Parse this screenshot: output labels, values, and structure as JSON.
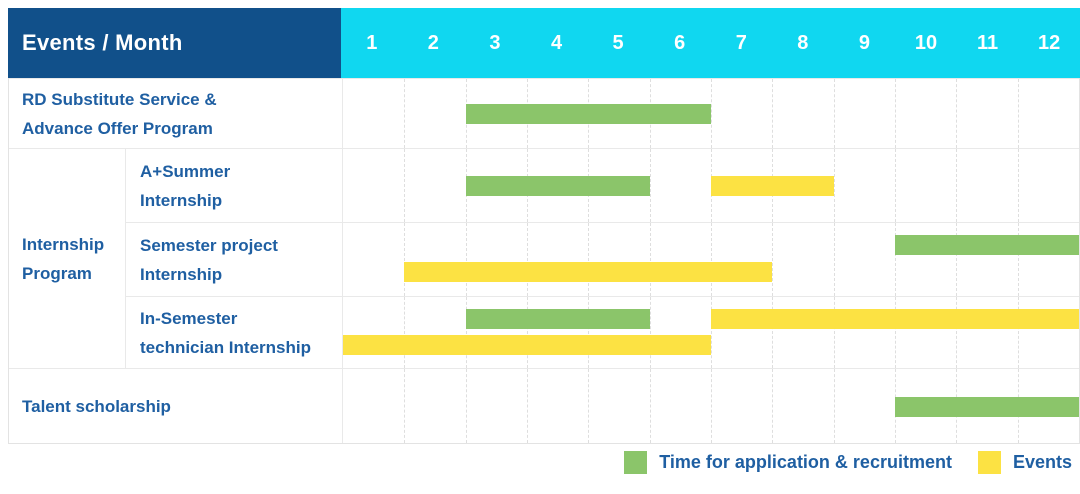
{
  "header": {
    "title": "Events / Month",
    "months": [
      "1",
      "2",
      "3",
      "4",
      "5",
      "6",
      "7",
      "8",
      "9",
      "10",
      "11",
      "12"
    ]
  },
  "legend": {
    "items": [
      {
        "swatch": "green",
        "label": "Time for application & recruitment"
      },
      {
        "swatch": "yellow",
        "label": "Events"
      }
    ]
  },
  "colors": {
    "navy": "#11508a",
    "cyan": "#10d7f0",
    "green": "#8bc56a",
    "yellow": "#fce243",
    "label_text": "#1f5fa2"
  },
  "chart_data": {
    "type": "table",
    "subtype": "gantt-schedule",
    "title": "Events / Month",
    "x_axis": {
      "label": "Month",
      "categories": [
        1,
        2,
        3,
        4,
        5,
        6,
        7,
        8,
        9,
        10,
        11,
        12
      ]
    },
    "series_legend": [
      {
        "name": "Time for application & recruitment",
        "color": "#8bc56a"
      },
      {
        "name": "Events",
        "color": "#fce243"
      }
    ],
    "rows": [
      {
        "group": null,
        "label": "RD Substitute Service & Advance Offer Program",
        "label_lines": [
          "RD Substitute Service &",
          "Advance Offer Program"
        ],
        "lines": [
          [
            {
              "series": "Time for application & recruitment",
              "color": "green",
              "start_month": 3,
              "end_month": 6
            }
          ]
        ]
      },
      {
        "group": "Internship Program",
        "group_lines": [
          "Internship",
          "Program"
        ],
        "group_row_span": 3,
        "label": "A+Summer Internship",
        "label_lines": [
          "A+Summer",
          "Internship"
        ],
        "lines": [
          [
            {
              "series": "Time for application & recruitment",
              "color": "green",
              "start_month": 3,
              "end_month": 5
            },
            {
              "series": "Events",
              "color": "yellow",
              "start_month": 7,
              "end_month": 8
            }
          ]
        ]
      },
      {
        "group": "Internship Program",
        "label": "Semester project Internship",
        "label_lines": [
          "Semester project",
          "Internship"
        ],
        "lines": [
          [
            {
              "series": "Time for application & recruitment",
              "color": "green",
              "start_month": 10,
              "end_month": 12
            }
          ],
          [
            {
              "series": "Events",
              "color": "yellow",
              "start_month": 2,
              "end_month": 7
            }
          ]
        ]
      },
      {
        "group": "Internship Program",
        "label": "In-Semester technician Internship",
        "label_lines": [
          "In-Semester",
          "technician Internship"
        ],
        "lines": [
          [
            {
              "series": "Time for application & recruitment",
              "color": "green",
              "start_month": 3,
              "end_month": 5
            },
            {
              "series": "Events",
              "color": "yellow",
              "start_month": 7,
              "end_month": 12
            }
          ],
          [
            {
              "series": "Events",
              "color": "yellow",
              "start_month": 1,
              "end_month": 6
            }
          ]
        ]
      },
      {
        "group": null,
        "label": "Talent scholarship",
        "label_lines": [
          "Talent scholarship"
        ],
        "lines": [
          [
            {
              "series": "Time for application & recruitment",
              "color": "green",
              "start_month": 10,
              "end_month": 12
            }
          ]
        ]
      }
    ]
  }
}
